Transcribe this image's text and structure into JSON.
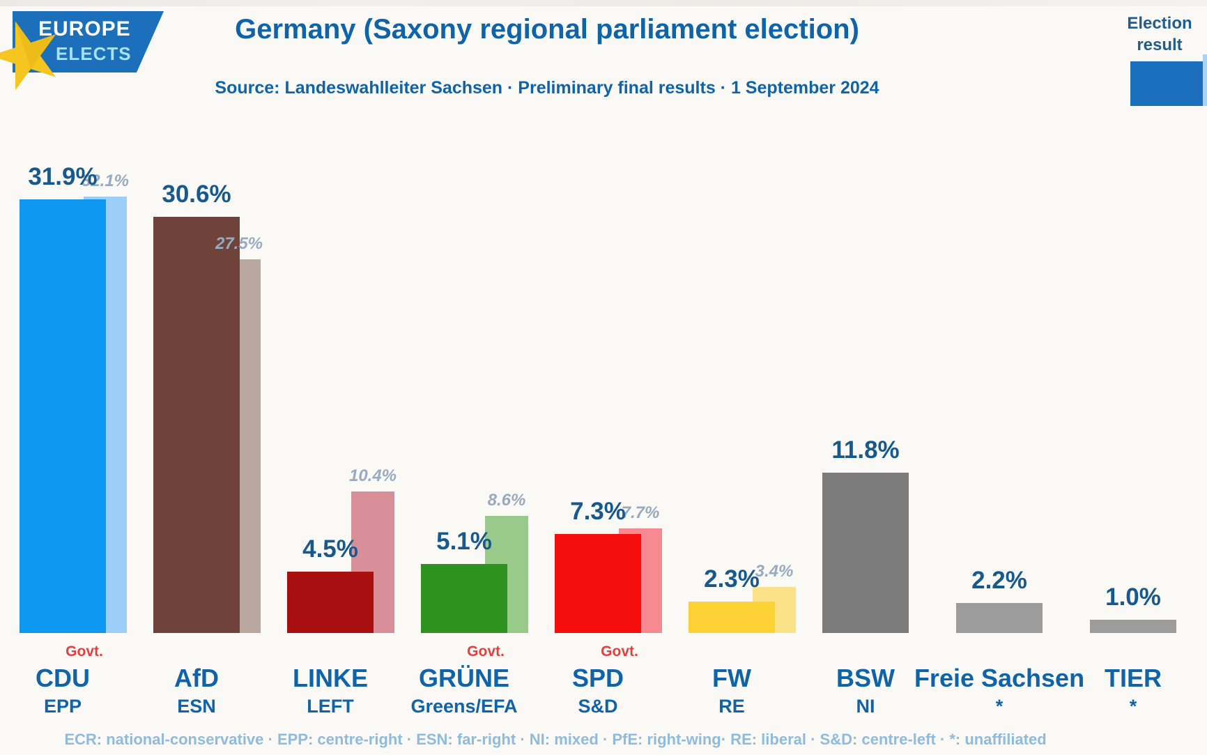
{
  "logo": {
    "line1": "EUROPE",
    "line2": "ELECTS"
  },
  "header": {
    "title": "Germany (Saxony regional parliament election)",
    "source": "Source: Landeswahlleiter Sachsen · Preliminary final results · 1 September 2024"
  },
  "legend": {
    "election_result_label": "Election result"
  },
  "labels": {
    "govt": "Govt."
  },
  "chart_data": {
    "type": "bar",
    "title": "Germany (Saxony regional parliament election)",
    "source": "Source: Landeswahlleiter Sachsen · Preliminary final results · 1 September 2024",
    "unit": "%",
    "ylim": [
      0,
      33
    ],
    "legend_position": "top-right",
    "legend_entries": [
      "Election result"
    ],
    "categories": [
      "CDU",
      "AfD",
      "LINKE",
      "GRÜNE",
      "SPD",
      "FW",
      "BSW",
      "Freie Sachsen",
      "TIER"
    ],
    "series": [
      {
        "name": "Preliminary final result",
        "values": [
          31.9,
          30.6,
          4.5,
          5.1,
          7.3,
          2.3,
          11.8,
          2.2,
          1.0
        ]
      },
      {
        "name": "Election result",
        "values": [
          32.1,
          27.5,
          10.4,
          8.6,
          7.7,
          3.4,
          null,
          null,
          null
        ]
      }
    ],
    "parties": [
      {
        "name": "CDU",
        "group": "EPP",
        "govt": true,
        "value": 31.9,
        "value_label": "31.9%",
        "election_value": 32.1,
        "election_label": "32.1%",
        "color": "#0d99f2",
        "light_color": "#9ccef7"
      },
      {
        "name": "AfD",
        "group": "ESN",
        "govt": false,
        "value": 30.6,
        "value_label": "30.6%",
        "election_value": 27.5,
        "election_label": "27.5%",
        "color": "#6f423a",
        "light_color": "#b9a8a0"
      },
      {
        "name": "LINKE",
        "group": "LEFT",
        "govt": false,
        "value": 4.5,
        "value_label": "4.5%",
        "election_value": 10.4,
        "election_label": "10.4%",
        "color": "#a90f0f",
        "light_color": "#d98f97"
      },
      {
        "name": "GRÜNE",
        "group": "Greens/EFA",
        "govt": true,
        "value": 5.1,
        "value_label": "5.1%",
        "election_value": 8.6,
        "election_label": "8.6%",
        "color": "#2f9220",
        "light_color": "#98cb8a"
      },
      {
        "name": "SPD",
        "group": "S&D",
        "govt": true,
        "value": 7.3,
        "value_label": "7.3%",
        "election_value": 7.7,
        "election_label": "7.7%",
        "color": "#f60d0d",
        "light_color": "#f68a90"
      },
      {
        "name": "FW",
        "group": "RE",
        "govt": false,
        "value": 2.3,
        "value_label": "2.3%",
        "election_value": 3.4,
        "election_label": "3.4%",
        "color": "#fcd235",
        "light_color": "#fbe289"
      },
      {
        "name": "BSW",
        "group": "NI",
        "govt": false,
        "value": 11.8,
        "value_label": "11.8%",
        "election_value": null,
        "election_label": null,
        "color": "#7b7b7b",
        "light_color": null
      },
      {
        "name": "Freie Sachsen",
        "group": "*",
        "govt": false,
        "value": 2.2,
        "value_label": "2.2%",
        "election_value": null,
        "election_label": null,
        "color": "#9c9c9c",
        "light_color": null
      },
      {
        "name": "TIER",
        "group": "*",
        "govt": false,
        "value": 1.0,
        "value_label": "1.0%",
        "election_value": null,
        "election_label": null,
        "color": "#9c9c9c",
        "light_color": null
      }
    ]
  },
  "footer": {
    "groups_legend": "ECR: national-conservative · EPP: centre-right · ESN: far-right · NI: mixed · PfE: right-wing· RE: liberal · S&D: centre-left · *: unaffiliated"
  },
  "colors": {
    "brand_blue": "#1c70bb",
    "title_blue": "#0e63a9",
    "value_label_blue": "#17598c",
    "election_label_gray_blue": "#96abc0",
    "govt_red": "#e24040",
    "footer_blue": "#8fbbdc",
    "star_yellow": "#f6c51f"
  }
}
